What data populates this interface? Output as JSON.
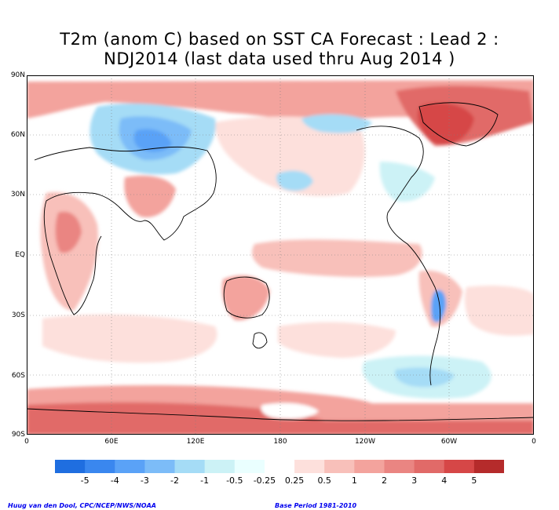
{
  "title_line1": "T2m (anom C) based on SST CA Forecast : Lead 2 :",
  "title_line2": "NDJ2014 (last data used thru Aug 2014 )",
  "lat_labels": [
    "90N",
    "60N",
    "30N",
    "EQ",
    "30S",
    "60S",
    "90S"
  ],
  "lon_labels": [
    "0",
    "60E",
    "120E",
    "180",
    "120W",
    "60W",
    "0"
  ],
  "colorbar": {
    "colors": [
      "#1f6ee0",
      "#3a87ef",
      "#5aa2f7",
      "#7cbcf8",
      "#a5dcf6",
      "#ccf2f6",
      "#eaffff",
      "#ffffff",
      "#fde0dc",
      "#f8c0ba",
      "#f3a39d",
      "#ea8582",
      "#e16a68",
      "#d64747",
      "#b52b2b"
    ],
    "tick_labels": [
      "-5",
      "-4",
      "-3",
      "-2",
      "-1",
      "-0.5",
      "-0.25",
      "0.25",
      "0.5",
      "1",
      "2",
      "3",
      "4",
      "5"
    ]
  },
  "footer_left": "Huug van den Dool, CPC/NCEP/NWS/NOAA",
  "footer_right": "Base Period 1981-2010"
}
